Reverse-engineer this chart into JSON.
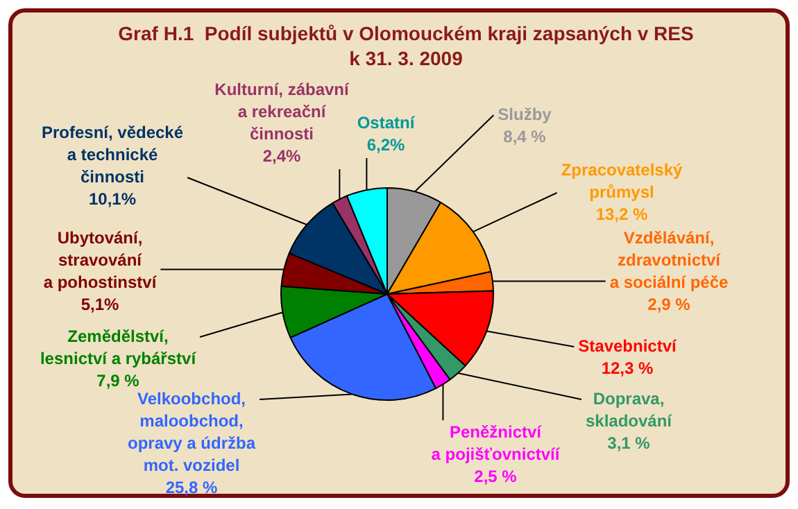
{
  "chart_data": {
    "type": "pie",
    "title": "Graf H.1  Podíl subjektů v Olomouckém kraji zapsaných v RES\nk 31. 3. 2009",
    "categories": [
      "Služby",
      "Zpracovatelský\nprůmysl",
      "Vzdělávání,\nzdravotnictví\na sociální péče",
      "Stavebnictví",
      "Doprava,\nskladování",
      "Peněžnictví\na pojišťovnictvíí",
      "Velkoobchod,\nmaloobchod,\nopravy a údržba\nmot. vozidel",
      "Zemědělství,\nlesnictví a rybářství",
      "Ubytování,\nstravování\na pohostinství",
      "Profesní, vědecké\na technické\nčinnosti",
      "Kulturní, zábavní\na rekreační\nčinnosti",
      "Ostatní"
    ],
    "values": [
      8.4,
      13.2,
      2.9,
      12.3,
      3.1,
      2.5,
      25.8,
      7.9,
      5.1,
      10.1,
      2.4,
      6.2
    ],
    "colors": [
      "#999999",
      "#ff9900",
      "#ff6600",
      "#ff0000",
      "#339966",
      "#ff00ff",
      "#3366ff",
      "#008000",
      "#800000",
      "#003366",
      "#993366",
      "#00ffff"
    ],
    "value_labels": [
      "8,4 %",
      "13,2 %",
      "2,9 %",
      "12,3 %",
      "3,1 %",
      "2,5 %",
      "25,8 %",
      "7,9 %",
      "5,1%",
      "10,1%",
      "2,4%",
      "6,2%"
    ],
    "legend": false
  }
}
